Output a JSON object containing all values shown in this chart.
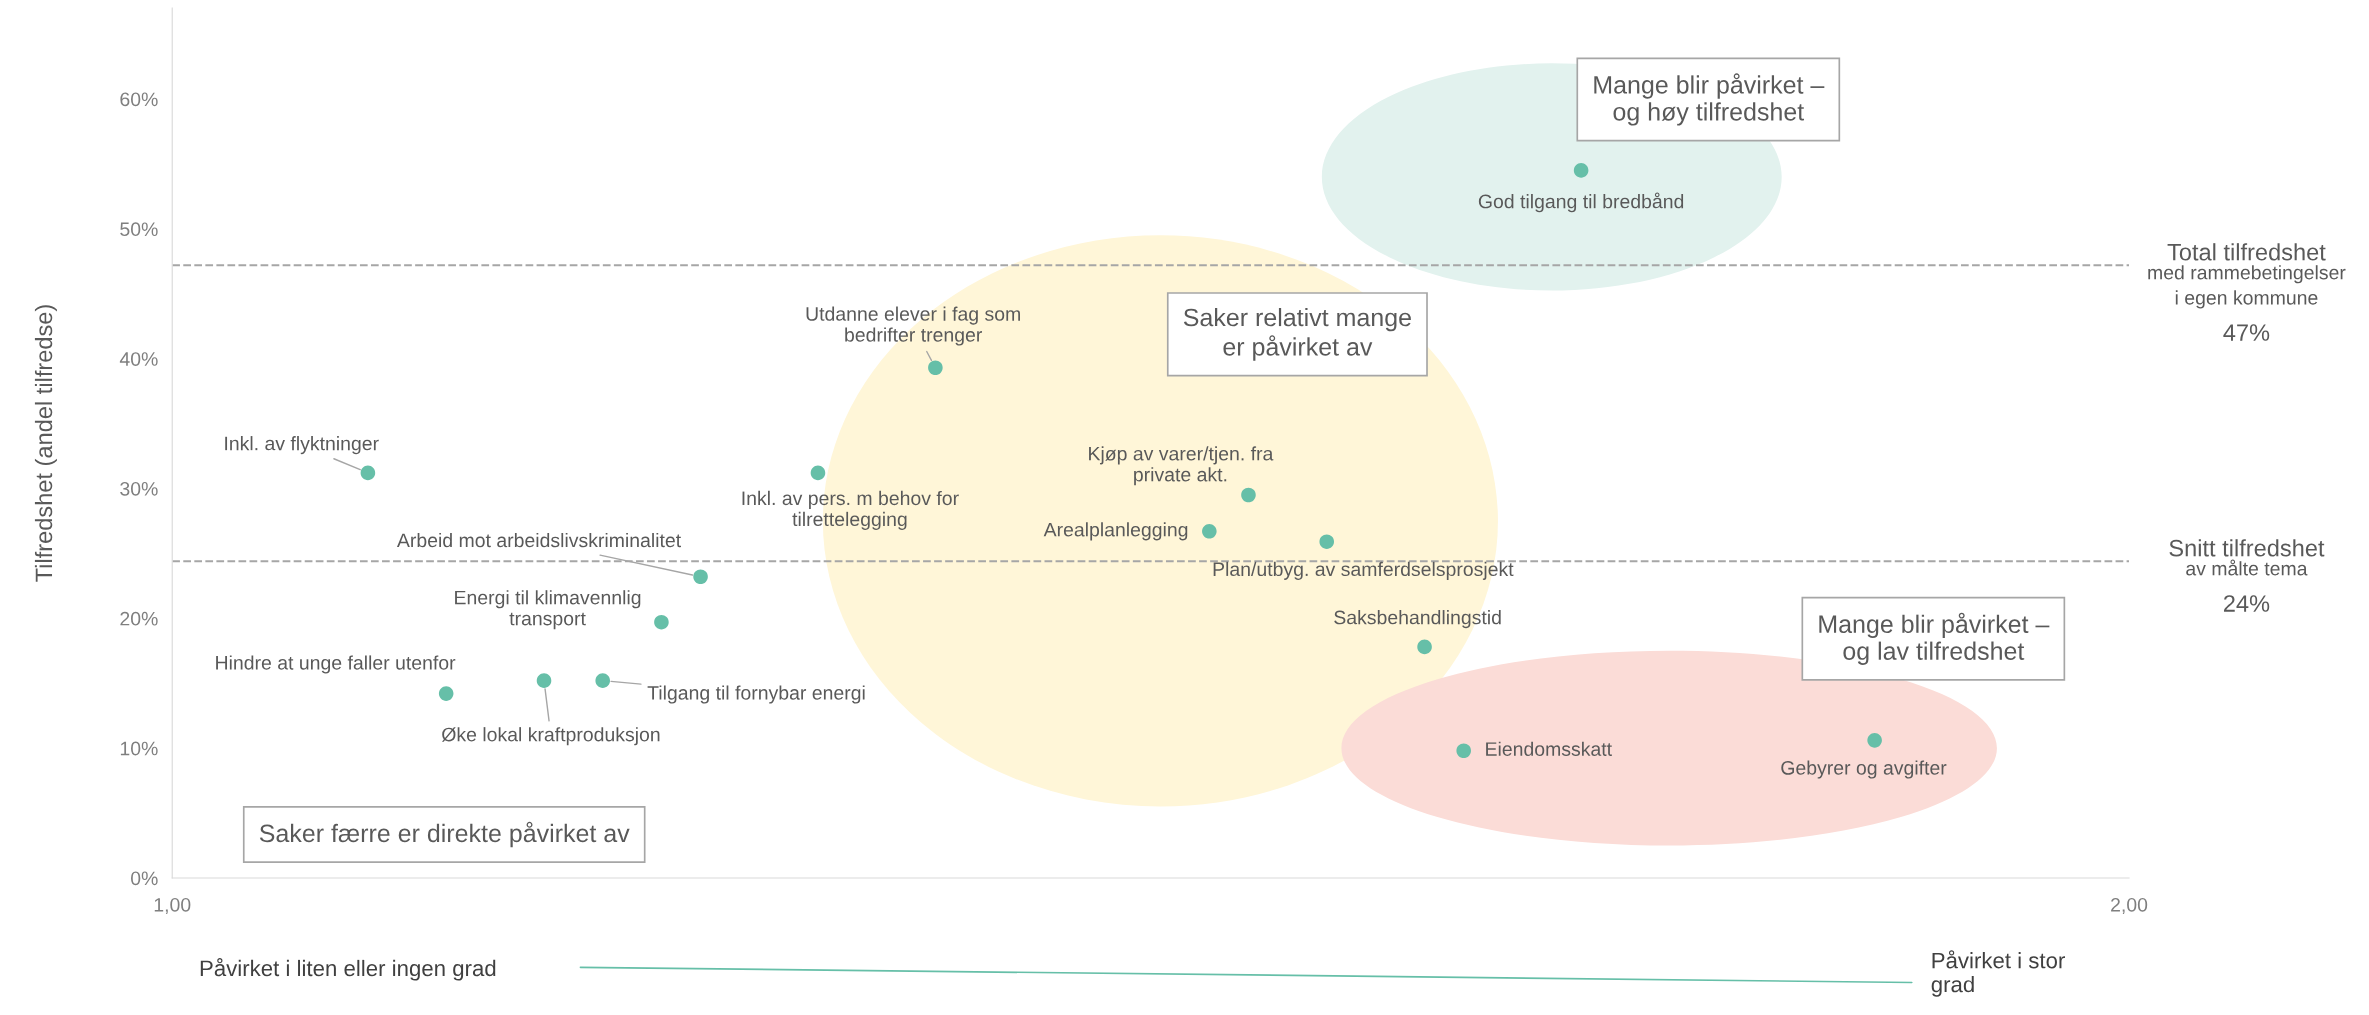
{
  "chart_data": {
    "type": "scatter",
    "ylabel": "Tilfredshet (andel tilfredse)",
    "x": [
      1.1,
      1.14,
      1.19,
      1.22,
      1.25,
      1.27,
      1.33,
      1.39,
      1.53,
      1.55,
      1.59,
      1.64,
      1.66,
      1.72,
      1.87
    ],
    "values": [
      31.2,
      14.2,
      15.2,
      15.2,
      19.7,
      23.2,
      31.2,
      39.3,
      26.7,
      29.5,
      25.9,
      17.8,
      9.8,
      54.5,
      10.6
    ],
    "color": "#66bfa8",
    "marker": "circle",
    "xlim": [
      1,
      2
    ],
    "xticks": [
      {
        "value": 1,
        "label": "1,00"
      },
      {
        "value": 2,
        "label": "2,00"
      }
    ],
    "ylim": [
      0,
      67
    ],
    "yticks": [
      {
        "value": 0,
        "label": "0%"
      },
      {
        "value": 10,
        "label": "10%"
      },
      {
        "value": 20,
        "label": "20%"
      },
      {
        "value": 30,
        "label": "30%"
      },
      {
        "value": 40,
        "label": "40%"
      },
      {
        "value": 50,
        "label": "50%"
      },
      {
        "value": 60,
        "label": "60%"
      }
    ],
    "grid": false,
    "legend": false,
    "ref_lines": [
      {
        "axis": "y",
        "value": 47.2,
        "label": "Total tilfredshet\nmed rammebetingelser\ni egen kommune\n47%",
        "color": "#a6a6a6",
        "line_style": "dashed"
      },
      {
        "axis": "y",
        "value": 24.4,
        "label": "Snitt tilfredshet\nav målte tema\n24%",
        "color": "#a6a6a6",
        "line_style": "dashed"
      }
    ],
    "annotations": [
      {
        "text": "Inkl. av flyktninger",
        "x": 1.1,
        "y": 31.2
      },
      {
        "text": "Hindre at unge faller utenfor",
        "x": 1.14,
        "y": 14.2
      },
      {
        "text": "Øke lokal kraftproduksjon",
        "x": 1.19,
        "y": 15.2
      },
      {
        "text": "Tilgang til fornybar energi",
        "x": 1.22,
        "y": 15.2
      },
      {
        "text": "Energi til klimavennlig\ntransport",
        "x": 1.25,
        "y": 19.7
      },
      {
        "text": "Arbeid mot arbeidslivskriminalitet",
        "x": 1.27,
        "y": 23.2
      },
      {
        "text": "Inkl. av pers. m behov for\ntilrettelegging",
        "x": 1.33,
        "y": 31.2
      },
      {
        "text": "Utdanne elever i fag som\nbedrifter trenger",
        "x": 1.39,
        "y": 39.3
      },
      {
        "text": "Arealplanlegging",
        "x": 1.53,
        "y": 26.7
      },
      {
        "text": "Kjøp av varer/tjen. fra\nprivate akt.",
        "x": 1.55,
        "y": 29.5
      },
      {
        "text": "Plan/utbyg. av samferdselsprosjekt",
        "x": 1.59,
        "y": 25.9
      },
      {
        "text": "Saksbehandlingstid",
        "x": 1.64,
        "y": 17.8
      },
      {
        "text": "Eiendomsskatt",
        "x": 1.66,
        "y": 9.8
      },
      {
        "text": "God tilgang til bredbånd",
        "x": 1.72,
        "y": 54.5
      },
      {
        "text": "Gebyrer og avgifter",
        "x": 1.87,
        "y": 10.6
      },
      "Mange blir påvirket –\nog høy tilfredshet",
      "Saker relativt mange\ner påvirket av",
      "Mange blir påvirket –\nog lav tilfredshet",
      "Saker færre er direkte påvirket av",
      "Påvirket i liten eller ingen grad",
      "Påvirket i stor\ngrad"
    ]
  }
}
